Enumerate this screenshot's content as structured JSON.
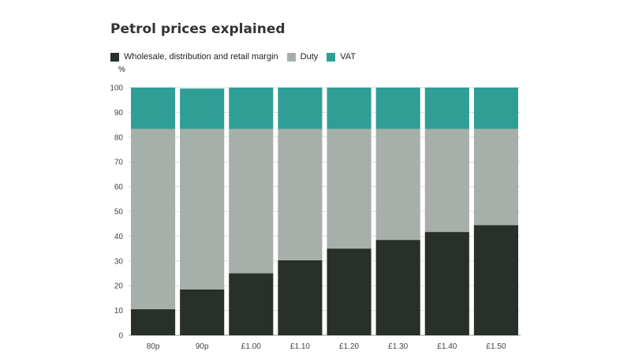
{
  "chart_data": {
    "type": "bar",
    "stacked": true,
    "title": "Petrol prices explained",
    "unit_label": "%",
    "xlabel": "",
    "ylabel": "",
    "ylim": [
      0,
      100
    ],
    "yticks": [
      0,
      10,
      20,
      30,
      40,
      50,
      60,
      70,
      80,
      90,
      100
    ],
    "grid": true,
    "legend_position": "top-left",
    "categories": [
      "80p",
      "90p",
      "£1.00",
      "£1.10",
      "£1.20",
      "£1.30",
      "£1.40",
      "£1.50"
    ],
    "series": [
      {
        "name": "Wholesale, distribution and retail margin",
        "color": "#283029",
        "values": [
          10.5,
          18.5,
          25,
          30.3,
          35,
          38.5,
          41.7,
          44.5
        ]
      },
      {
        "name": "Duty",
        "color": "#a7afab",
        "values": [
          72.8,
          64.8,
          58.3,
          53,
          48.3,
          44.8,
          41.6,
          38.8
        ]
      },
      {
        "name": "VAT",
        "color": "#2f9f96",
        "values": [
          16.7,
          16.3,
          16.7,
          16.7,
          16.7,
          16.7,
          16.7,
          16.7
        ]
      }
    ]
  }
}
